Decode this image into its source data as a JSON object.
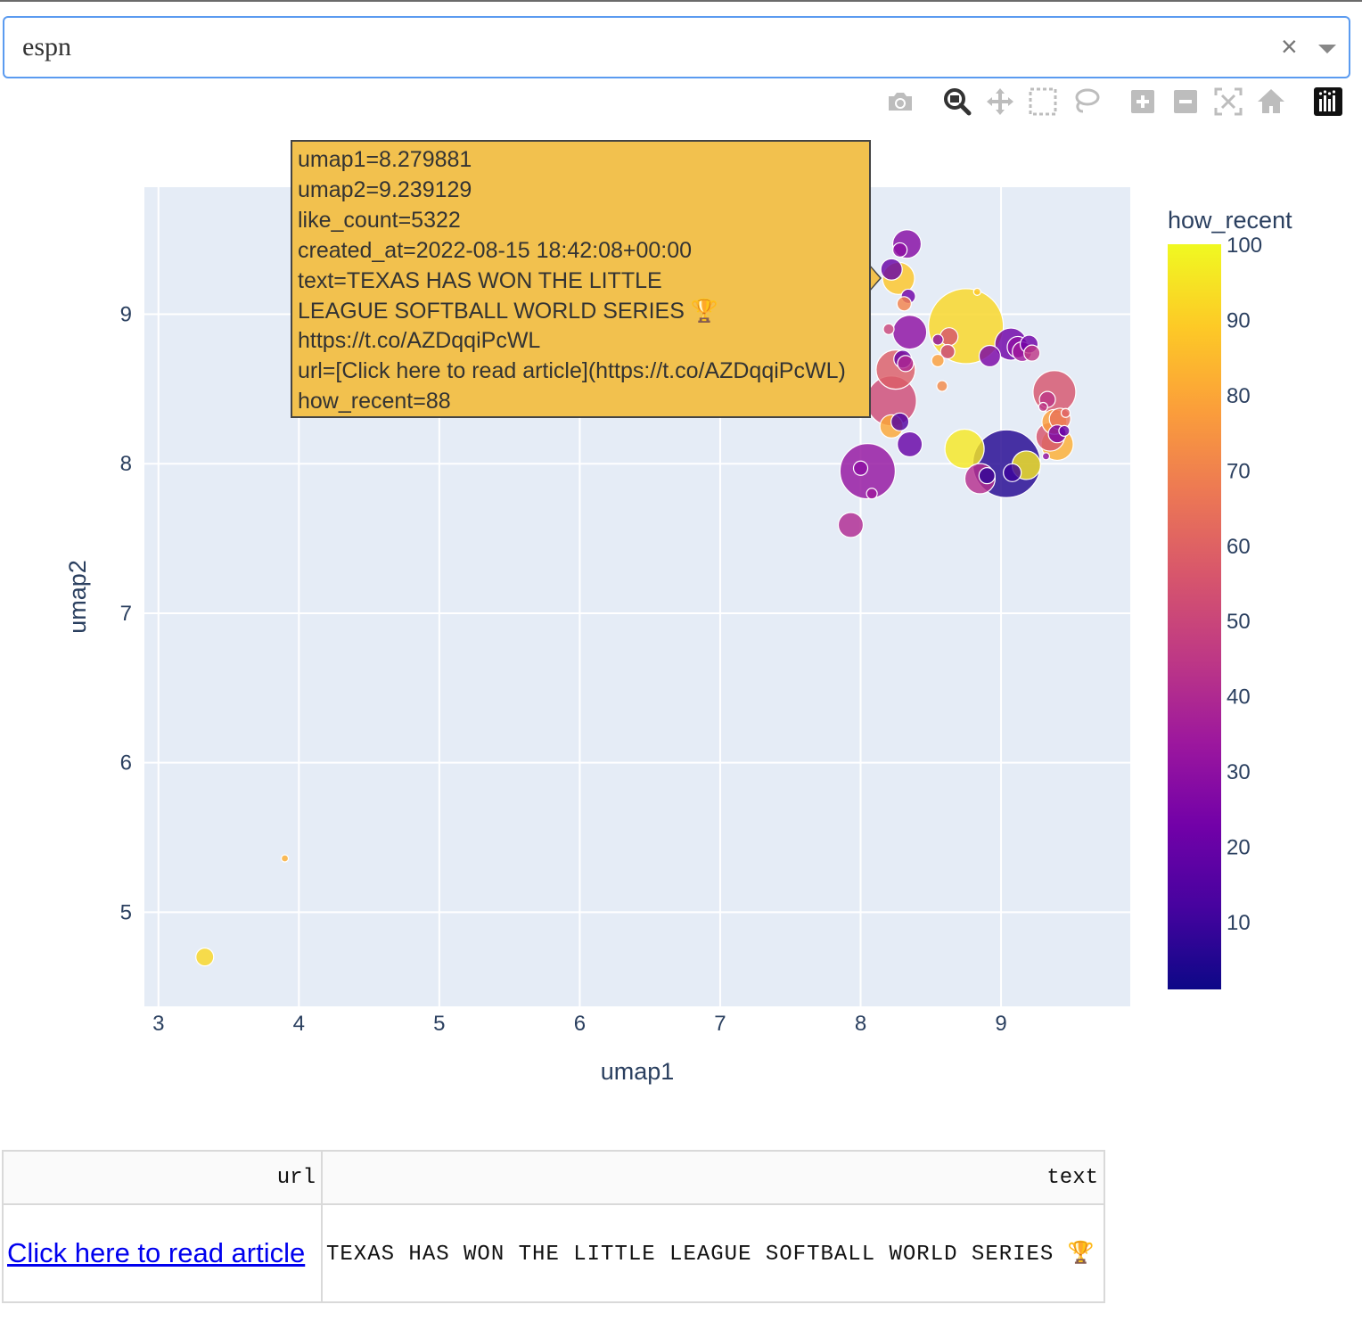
{
  "dropdown": {
    "value": "espn",
    "clear_icon": "×"
  },
  "modebar": {
    "buttons": [
      "camera-icon",
      "zoom-icon",
      "pan-icon",
      "box-select-icon",
      "lasso-select-icon",
      "zoom-in-icon",
      "zoom-out-icon",
      "autoscale-icon",
      "reset-axes-icon",
      "plotly-logo-icon"
    ]
  },
  "tooltip": {
    "lines": [
      "umap1=8.279881",
      "umap2=9.239129",
      "like_count=5322",
      "created_at=2022-08-15 18:42:08+00:00",
      "text=TEXAS HAS WON THE LITTLE",
      "LEAGUE SOFTBALL WORLD SERIES 🏆",
      "https://t.co/AZDqqiPcWL",
      "url=[Click here to read article](https://t.co/AZDqqiPcWL)",
      "how_recent=88"
    ],
    "background": "#f2c14e"
  },
  "chart_data": {
    "type": "scatter",
    "xlabel": "umap1",
    "ylabel": "umap2",
    "colorbar_title": "how_recent",
    "xlim": [
      2.9,
      9.92
    ],
    "ylim": [
      4.37,
      9.85
    ],
    "xticks": [
      3,
      4,
      5,
      6,
      7,
      8,
      9
    ],
    "yticks": [
      5,
      6,
      7,
      8,
      9
    ],
    "colorbar_ticks": [
      10,
      20,
      30,
      40,
      50,
      60,
      70,
      80,
      90,
      100
    ],
    "color_range": [
      1,
      100
    ],
    "colorscale": "plasma",
    "grid": true,
    "points": [
      {
        "x": 3.33,
        "y": 4.7,
        "r": 10,
        "c": 92
      },
      {
        "x": 3.9,
        "y": 5.36,
        "r": 4,
        "c": 82
      },
      {
        "x": 8.75,
        "y": 8.92,
        "r": 42,
        "c": 92
      },
      {
        "x": 9.04,
        "y": 8.0,
        "r": 38,
        "c": 5
      },
      {
        "x": 8.05,
        "y": 7.95,
        "r": 31,
        "c": 32
      },
      {
        "x": 8.22,
        "y": 8.42,
        "r": 28,
        "c": 52
      },
      {
        "x": 8.74,
        "y": 8.1,
        "r": 22,
        "c": 96
      },
      {
        "x": 9.38,
        "y": 8.48,
        "r": 24,
        "c": 55
      },
      {
        "x": 8.35,
        "y": 8.88,
        "r": 19,
        "c": 30
      },
      {
        "x": 8.27,
        "y": 9.24,
        "r": 18,
        "c": 88
      },
      {
        "x": 8.25,
        "y": 8.63,
        "r": 22,
        "c": 58
      },
      {
        "x": 9.07,
        "y": 8.8,
        "r": 18,
        "c": 22
      },
      {
        "x": 8.85,
        "y": 7.9,
        "r": 17,
        "c": 42
      },
      {
        "x": 9.4,
        "y": 8.13,
        "r": 18,
        "c": 82
      },
      {
        "x": 9.35,
        "y": 8.18,
        "r": 16,
        "c": 55
      },
      {
        "x": 9.18,
        "y": 7.99,
        "r": 16,
        "c": 96
      },
      {
        "x": 9.38,
        "y": 8.28,
        "r": 14,
        "c": 78
      },
      {
        "x": 9.42,
        "y": 8.3,
        "r": 12,
        "c": 65
      },
      {
        "x": 8.33,
        "y": 9.47,
        "r": 16,
        "c": 28
      },
      {
        "x": 8.35,
        "y": 8.13,
        "r": 14,
        "c": 20
      },
      {
        "x": 7.93,
        "y": 7.59,
        "r": 14,
        "c": 40
      },
      {
        "x": 8.92,
        "y": 8.72,
        "r": 12,
        "c": 25
      },
      {
        "x": 9.12,
        "y": 8.78,
        "r": 12,
        "c": 30
      },
      {
        "x": 9.2,
        "y": 8.8,
        "r": 10,
        "c": 22
      },
      {
        "x": 9.15,
        "y": 8.75,
        "r": 11,
        "c": 35
      },
      {
        "x": 9.08,
        "y": 7.94,
        "r": 10,
        "c": 10
      },
      {
        "x": 8.9,
        "y": 7.92,
        "r": 9,
        "c": 8
      },
      {
        "x": 8.22,
        "y": 8.25,
        "r": 13,
        "c": 80
      },
      {
        "x": 8.28,
        "y": 8.28,
        "r": 10,
        "c": 15
      },
      {
        "x": 8.63,
        "y": 8.85,
        "r": 10,
        "c": 55
      },
      {
        "x": 8.62,
        "y": 8.75,
        "r": 8,
        "c": 50
      },
      {
        "x": 8.3,
        "y": 8.7,
        "r": 10,
        "c": 20
      },
      {
        "x": 8.32,
        "y": 8.67,
        "r": 9,
        "c": 40
      },
      {
        "x": 8.22,
        "y": 9.3,
        "r": 12,
        "c": 20
      },
      {
        "x": 8.34,
        "y": 9.12,
        "r": 8,
        "c": 22
      },
      {
        "x": 8.31,
        "y": 9.07,
        "r": 8,
        "c": 70
      },
      {
        "x": 8.2,
        "y": 8.9,
        "r": 6,
        "c": 50
      },
      {
        "x": 8.28,
        "y": 9.43,
        "r": 8,
        "c": 30
      },
      {
        "x": 8.08,
        "y": 7.8,
        "r": 6,
        "c": 35
      },
      {
        "x": 8.55,
        "y": 8.69,
        "r": 7,
        "c": 78
      },
      {
        "x": 8.58,
        "y": 8.52,
        "r": 6,
        "c": 72
      },
      {
        "x": 8.55,
        "y": 8.83,
        "r": 6,
        "c": 30
      },
      {
        "x": 8.83,
        "y": 9.15,
        "r": 4,
        "c": 88
      },
      {
        "x": 9.22,
        "y": 8.74,
        "r": 9,
        "c": 45
      },
      {
        "x": 9.33,
        "y": 8.43,
        "r": 9,
        "c": 45
      },
      {
        "x": 9.45,
        "y": 8.22,
        "r": 6,
        "c": 20
      },
      {
        "x": 9.4,
        "y": 8.2,
        "r": 10,
        "c": 25
      },
      {
        "x": 9.3,
        "y": 8.38,
        "r": 5,
        "c": 45
      },
      {
        "x": 9.46,
        "y": 8.34,
        "r": 5,
        "c": 60
      },
      {
        "x": 9.32,
        "y": 8.05,
        "r": 4,
        "c": 30
      },
      {
        "x": 8.0,
        "y": 7.97,
        "r": 8,
        "c": 30
      }
    ]
  },
  "table": {
    "headers": {
      "url": "url",
      "text": "text"
    },
    "row": {
      "url_text": "Click here to read article",
      "text": "TEXAS HAS WON THE LITTLE LEAGUE SOFTBALL WORLD SERIES 🏆"
    }
  }
}
